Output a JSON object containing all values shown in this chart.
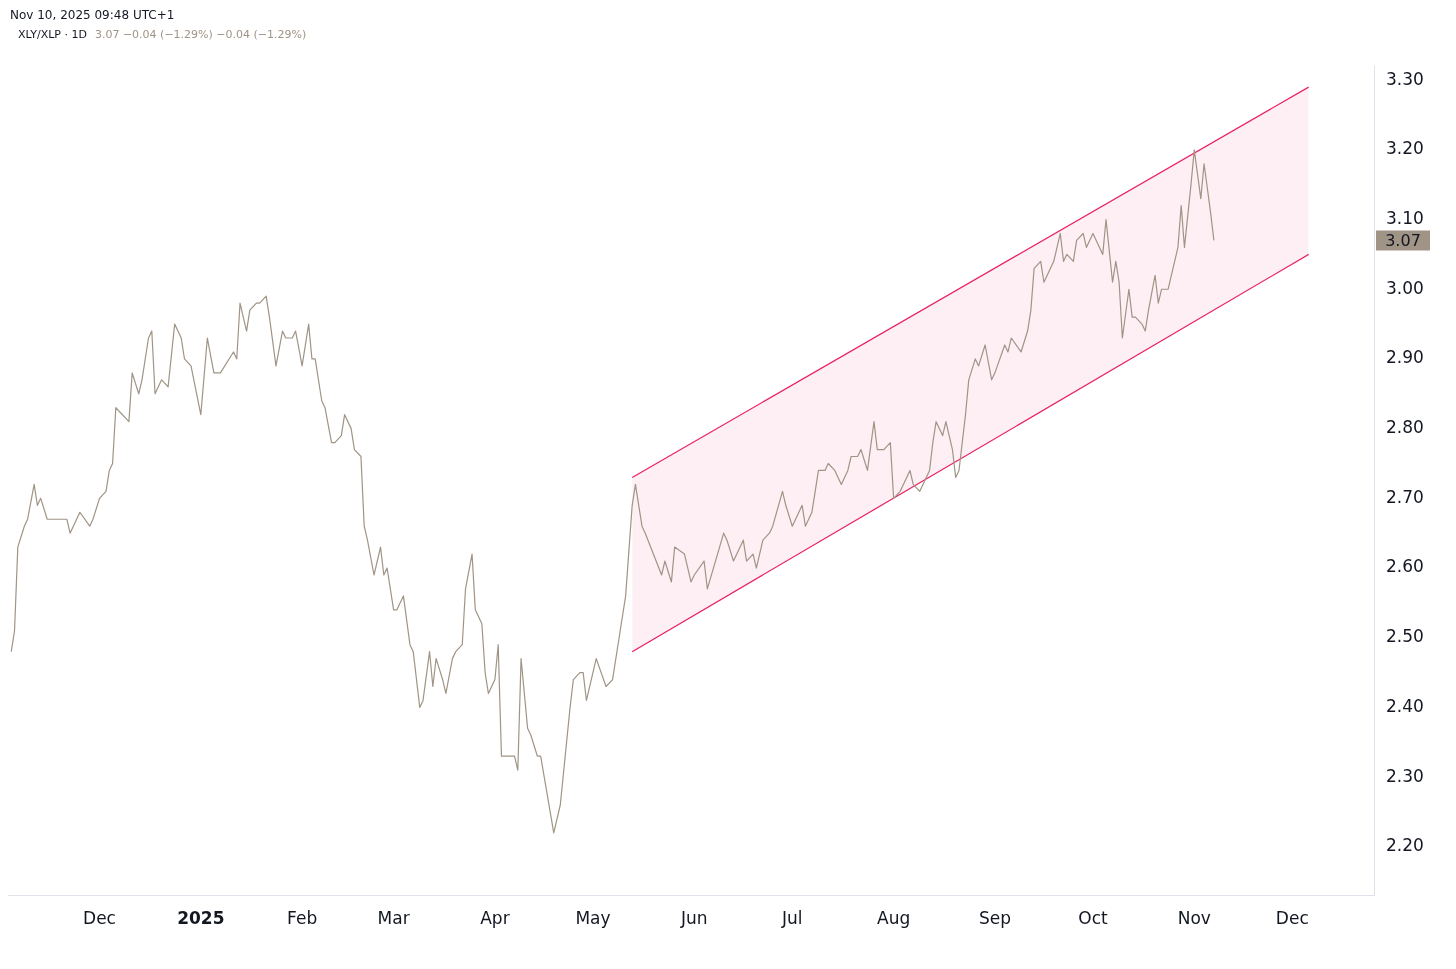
{
  "chart_data": {
    "type": "line",
    "title": "XLY/XLP · 1D",
    "subtitle": "3.07 −0.04 (−1.29%) −0.04 (−1.29%)",
    "annotations": [
      "Nov 10, 2025 09:48 UTC+1",
      "3.07"
    ],
    "xlim": [
      "2024-11-03",
      "2025-12-26"
    ],
    "xticks": [
      {
        "value": "2024-12-01",
        "label": "Dec"
      },
      {
        "value": "2025-01-01",
        "label": "2025"
      },
      {
        "value": "2025-02-01",
        "label": "Feb"
      },
      {
        "value": "2025-03-01",
        "label": "Mar"
      },
      {
        "value": "2025-04-01",
        "label": "Apr"
      },
      {
        "value": "2025-05-01",
        "label": "May"
      },
      {
        "value": "2025-06-01",
        "label": "Jun"
      },
      {
        "value": "2025-07-01",
        "label": "Jul"
      },
      {
        "value": "2025-08-01",
        "label": "Aug"
      },
      {
        "value": "2025-09-01",
        "label": "Sep"
      },
      {
        "value": "2025-10-01",
        "label": "Oct"
      },
      {
        "value": "2025-11-01",
        "label": "Nov"
      },
      {
        "value": "2025-12-01",
        "label": "Dec"
      }
    ],
    "ylim": [
      2.13,
      3.32
    ],
    "yticks": [
      {
        "value": 2.2,
        "label": "2.20"
      },
      {
        "value": 2.3,
        "label": "2.30"
      },
      {
        "value": 2.4,
        "label": "2.40"
      },
      {
        "value": 2.5,
        "label": "2.50"
      },
      {
        "value": 2.6,
        "label": "2.60"
      },
      {
        "value": 2.7,
        "label": "2.70"
      },
      {
        "value": 2.8,
        "label": "2.80"
      },
      {
        "value": 2.9,
        "label": "2.90"
      },
      {
        "value": 3.0,
        "label": "3.00"
      },
      {
        "value": 3.1,
        "label": "3.10"
      },
      {
        "value": 3.2,
        "label": "3.20"
      },
      {
        "value": 3.3,
        "label": "3.30"
      }
    ],
    "grid": false,
    "legend": false,
    "marker": "none",
    "line_style": "solid",
    "series": [
      {
        "color": "#a09486",
        "x": [
          "2024-11-04",
          "2024-11-05",
          "2024-11-06",
          "2024-11-08",
          "2024-11-09",
          "2024-11-11",
          "2024-11-12",
          "2024-11-13",
          "2024-11-15",
          "2024-11-16",
          "2024-11-18",
          "2024-11-21",
          "2024-11-22",
          "2024-11-25",
          "2024-11-28",
          "2024-11-29",
          "2024-12-01",
          "2024-12-03",
          "2024-12-04",
          "2024-12-05",
          "2024-12-06",
          "2024-12-10",
          "2024-12-11",
          "2024-12-13",
          "2024-12-14",
          "2024-12-16",
          "2024-12-17",
          "2024-12-18",
          "2024-12-20",
          "2024-12-22",
          "2024-12-24",
          "2024-12-26",
          "2024-12-27",
          "2024-12-29",
          "2025-01-01",
          "2025-01-03",
          "2025-01-05",
          "2025-01-07",
          "2025-01-11",
          "2025-01-12",
          "2025-01-13",
          "2025-01-15",
          "2025-01-16",
          "2025-01-18",
          "2025-01-19",
          "2025-01-21",
          "2025-01-22",
          "2025-01-24",
          "2025-01-26",
          "2025-01-27",
          "2025-01-29",
          "2025-01-30",
          "2025-02-01",
          "2025-02-03",
          "2025-02-04",
          "2025-02-05",
          "2025-02-07",
          "2025-02-08",
          "2025-02-10",
          "2025-02-11",
          "2025-02-13",
          "2025-02-14",
          "2025-02-16",
          "2025-02-17",
          "2025-02-19",
          "2025-02-20",
          "2025-02-21",
          "2025-02-23",
          "2025-02-25",
          "2025-02-26",
          "2025-02-27",
          "2025-03-01",
          "2025-03-02",
          "2025-03-04",
          "2025-03-06",
          "2025-03-07",
          "2025-03-09",
          "2025-03-10",
          "2025-03-12",
          "2025-03-13",
          "2025-03-14",
          "2025-03-16",
          "2025-03-17",
          "2025-03-19",
          "2025-03-20",
          "2025-03-22",
          "2025-03-23",
          "2025-03-25",
          "2025-03-26",
          "2025-03-28",
          "2025-03-29",
          "2025-03-30",
          "2025-04-01",
          "2025-04-02",
          "2025-04-03",
          "2025-04-07",
          "2025-04-08",
          "2025-04-09",
          "2025-04-11",
          "2025-04-12",
          "2025-04-14",
          "2025-04-15",
          "2025-04-19",
          "2025-04-21",
          "2025-04-24",
          "2025-04-25",
          "2025-04-27",
          "2025-04-28",
          "2025-04-29",
          "2025-05-02",
          "2025-05-05",
          "2025-05-07",
          "2025-05-09",
          "2025-05-11",
          "2025-05-13",
          "2025-05-14",
          "2025-05-16",
          "2025-05-17",
          "2025-05-22",
          "2025-05-23",
          "2025-05-25",
          "2025-05-26",
          "2025-05-29",
          "2025-05-31",
          "2025-06-01",
          "2025-06-04",
          "2025-06-05",
          "2025-06-10",
          "2025-06-11",
          "2025-06-13",
          "2025-06-16",
          "2025-06-17",
          "2025-06-19",
          "2025-06-20",
          "2025-06-22",
          "2025-06-24",
          "2025-06-25",
          "2025-06-28",
          "2025-06-29",
          "2025-07-01",
          "2025-07-04",
          "2025-07-05",
          "2025-07-07",
          "2025-07-08",
          "2025-07-09",
          "2025-07-11",
          "2025-07-12",
          "2025-07-14",
          "2025-07-16",
          "2025-07-18",
          "2025-07-19",
          "2025-07-21",
          "2025-07-22",
          "2025-07-24",
          "2025-07-26",
          "2025-07-27",
          "2025-07-29",
          "2025-07-31",
          "2025-08-01",
          "2025-08-03",
          "2025-08-04",
          "2025-08-06",
          "2025-08-07",
          "2025-08-09",
          "2025-08-10",
          "2025-08-12",
          "2025-08-13",
          "2025-08-14",
          "2025-08-16",
          "2025-08-17",
          "2025-08-19",
          "2025-08-20",
          "2025-08-21",
          "2025-08-23",
          "2025-08-24",
          "2025-08-26",
          "2025-08-27",
          "2025-08-29",
          "2025-08-31",
          "2025-09-01",
          "2025-09-04",
          "2025-09-05",
          "2025-09-06",
          "2025-09-09",
          "2025-09-11",
          "2025-09-12",
          "2025-09-13",
          "2025-09-15",
          "2025-09-16",
          "2025-09-19",
          "2025-09-21",
          "2025-09-22",
          "2025-09-23",
          "2025-09-25",
          "2025-09-26",
          "2025-09-28",
          "2025-09-29",
          "2025-10-01",
          "2025-10-02",
          "2025-10-04",
          "2025-10-05",
          "2025-10-07",
          "2025-10-08",
          "2025-10-09",
          "2025-10-10",
          "2025-10-12",
          "2025-10-13",
          "2025-10-14",
          "2025-10-16",
          "2025-10-17",
          "2025-10-18",
          "2025-10-20",
          "2025-10-21",
          "2025-10-22",
          "2025-10-24",
          "2025-10-27",
          "2025-10-28",
          "2025-10-29",
          "2025-10-31",
          "2025-11-01",
          "2025-11-03",
          "2025-11-04",
          "2025-11-06",
          "2025-11-07"
        ],
        "values": [
          2.48,
          2.51,
          2.63,
          2.66,
          2.67,
          2.72,
          2.69,
          2.7,
          2.67,
          2.67,
          2.67,
          2.67,
          2.65,
          2.68,
          2.66,
          2.67,
          2.7,
          2.71,
          2.74,
          2.75,
          2.83,
          2.81,
          2.88,
          2.85,
          2.87,
          2.93,
          2.94,
          2.85,
          2.87,
          2.86,
          2.95,
          2.93,
          2.9,
          2.89,
          2.82,
          2.93,
          2.88,
          2.88,
          2.91,
          2.9,
          2.98,
          2.94,
          2.97,
          2.98,
          2.98,
          2.99,
          2.96,
          2.89,
          2.94,
          2.93,
          2.93,
          2.94,
          2.89,
          2.95,
          2.9,
          2.9,
          2.84,
          2.83,
          2.78,
          2.78,
          2.79,
          2.82,
          2.8,
          2.77,
          2.76,
          2.66,
          2.64,
          2.59,
          2.63,
          2.59,
          2.6,
          2.54,
          2.54,
          2.56,
          2.49,
          2.48,
          2.4,
          2.41,
          2.48,
          2.43,
          2.47,
          2.44,
          2.42,
          2.47,
          2.48,
          2.49,
          2.57,
          2.62,
          2.54,
          2.52,
          2.45,
          2.42,
          2.44,
          2.49,
          2.33,
          2.33,
          2.31,
          2.47,
          2.37,
          2.36,
          2.33,
          2.33,
          2.22,
          2.26,
          2.4,
          2.44,
          2.45,
          2.45,
          2.41,
          2.47,
          2.43,
          2.44,
          2.5,
          2.56,
          2.69,
          2.72,
          2.66,
          2.65,
          2.59,
          2.61,
          2.58,
          2.63,
          2.62,
          2.58,
          2.59,
          2.61,
          2.57,
          2.65,
          2.64,
          2.61,
          2.64,
          2.61,
          2.62,
          2.6,
          2.64,
          2.65,
          2.66,
          2.71,
          2.69,
          2.66,
          2.69,
          2.66,
          2.68,
          2.71,
          2.74,
          2.74,
          2.75,
          2.74,
          2.72,
          2.74,
          2.76,
          2.76,
          2.77,
          2.74,
          2.81,
          2.77,
          2.77,
          2.78,
          2.7,
          2.71,
          2.72,
          2.74,
          2.72,
          2.71,
          2.72,
          2.74,
          2.78,
          2.81,
          2.79,
          2.81,
          2.77,
          2.73,
          2.74,
          2.82,
          2.87,
          2.9,
          2.89,
          2.92,
          2.87,
          2.88,
          2.92,
          2.91,
          2.93,
          2.91,
          2.94,
          2.97,
          3.03,
          3.04,
          3.01,
          3.04,
          3.08,
          3.04,
          3.05,
          3.04,
          3.07,
          3.08,
          3.06,
          3.08,
          3.07,
          3.05,
          3.1,
          3.01,
          3.04,
          3.01,
          2.93,
          3.0,
          2.96,
          2.96,
          2.95,
          2.94,
          2.97,
          3.02,
          2.98,
          3.0,
          3.0,
          3.06,
          3.12,
          3.06,
          3.15,
          3.2,
          3.13,
          3.18,
          3.11,
          3.07
        ]
      },
      {
        "color": "#e91e63",
        "x": [
          "2025-05-13",
          "2025-12-06"
        ],
        "values": [
          2.48,
          3.05
        ]
      },
      {
        "color": "#e91e63",
        "x": [
          "2025-05-13",
          "2025-12-06"
        ],
        "values": [
          2.73,
          3.29
        ],
        "lower": [
          2.48,
          3.05
        ],
        "upper": [
          2.73,
          3.29
        ]
      }
    ]
  }
}
